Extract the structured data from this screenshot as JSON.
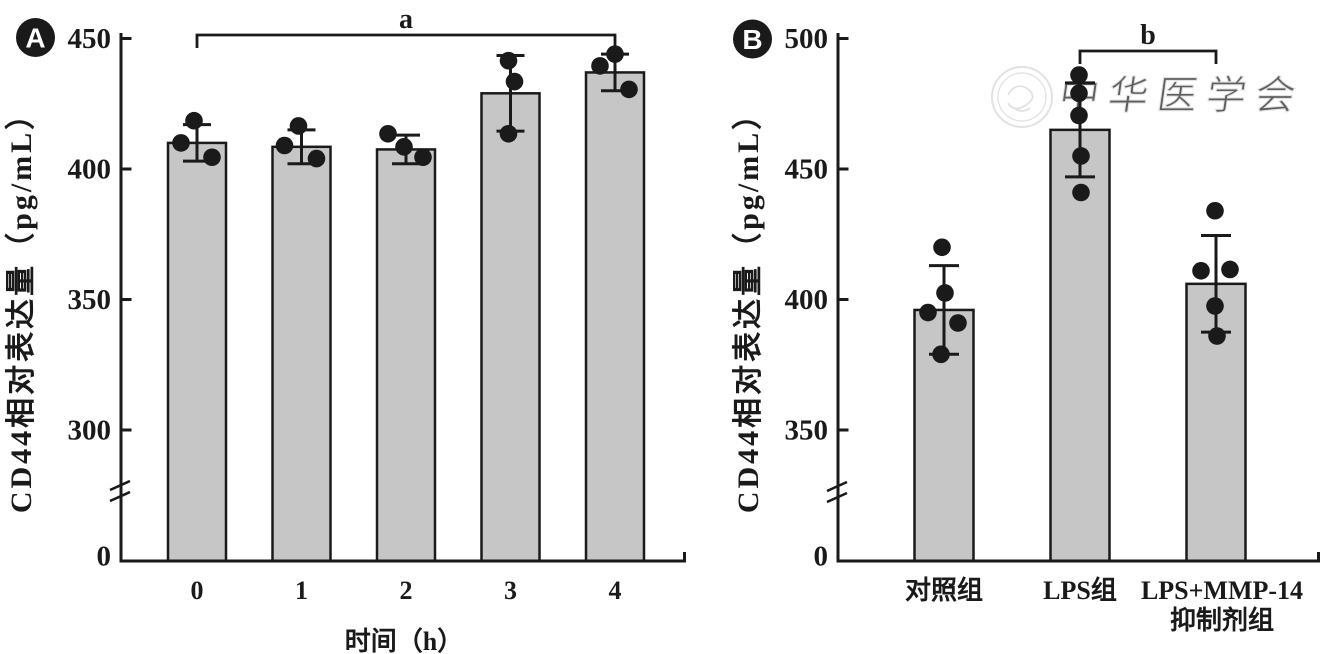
{
  "figure": {
    "background": "#ffffff",
    "ink": "#1a1a1a",
    "bar_fill": "#c6c6c6",
    "watermark_color": "#d6d6d6"
  },
  "chart_data": [
    {
      "type": "bar",
      "panel_label": "A",
      "xlabel": "时间（h）",
      "ylabel": "CD44相对表达量（pg/mL）",
      "categories": [
        "0",
        "1",
        "2",
        "3",
        "4"
      ],
      "values": [
        410,
        408.5,
        407.5,
        429,
        437
      ],
      "errors": [
        7,
        6.5,
        5.5,
        14.5,
        7
      ],
      "points": [
        [
          [
            418.5,
            -3
          ],
          [
            410,
            -16
          ],
          [
            404.5,
            15
          ]
        ],
        [
          [
            416.5,
            -3
          ],
          [
            409,
            -17
          ],
          [
            404,
            15
          ]
        ],
        [
          [
            413.5,
            -18
          ],
          [
            408.5,
            -2
          ],
          [
            404.5,
            17
          ]
        ],
        [
          [
            441.5,
            -2
          ],
          [
            433.5,
            4
          ],
          [
            413.5,
            -2
          ]
        ],
        [
          [
            444,
            0
          ],
          [
            439.5,
            -15
          ],
          [
            430.5,
            14
          ]
        ]
      ],
      "yticks": [
        0,
        300,
        350,
        400,
        450
      ],
      "ylim": [
        0,
        450
      ],
      "axis_break": true,
      "significance": {
        "label": "a",
        "from": 0,
        "to": 4
      }
    },
    {
      "type": "bar",
      "panel_label": "B",
      "xlabel": "",
      "ylabel": "CD44相对表达量（pg/mL）",
      "categories": [
        "对照组",
        "LPS组",
        [
          "LPS+MMP-14",
          "抑制剂组"
        ]
      ],
      "values": [
        396,
        465,
        406
      ],
      "errors": [
        17,
        18,
        18.5
      ],
      "points": [
        [
          [
            420,
            -2
          ],
          [
            402.5,
            1
          ],
          [
            395,
            -16
          ],
          [
            391,
            14
          ],
          [
            379,
            -3
          ]
        ],
        [
          [
            486,
            -1
          ],
          [
            479,
            -1
          ],
          [
            470.5,
            -1
          ],
          [
            455,
            1
          ],
          [
            441,
            1
          ]
        ],
        [
          [
            434,
            -1
          ],
          [
            411,
            -15
          ],
          [
            411.5,
            14
          ],
          [
            397.5,
            -1
          ],
          [
            386,
            1
          ]
        ]
      ],
      "yticks": [
        0,
        350,
        400,
        450,
        500
      ],
      "ylim": [
        0,
        500
      ],
      "axis_break": true,
      "significance": {
        "label": "b",
        "from": 1,
        "to": 2
      },
      "watermark": "中华医学会"
    }
  ]
}
